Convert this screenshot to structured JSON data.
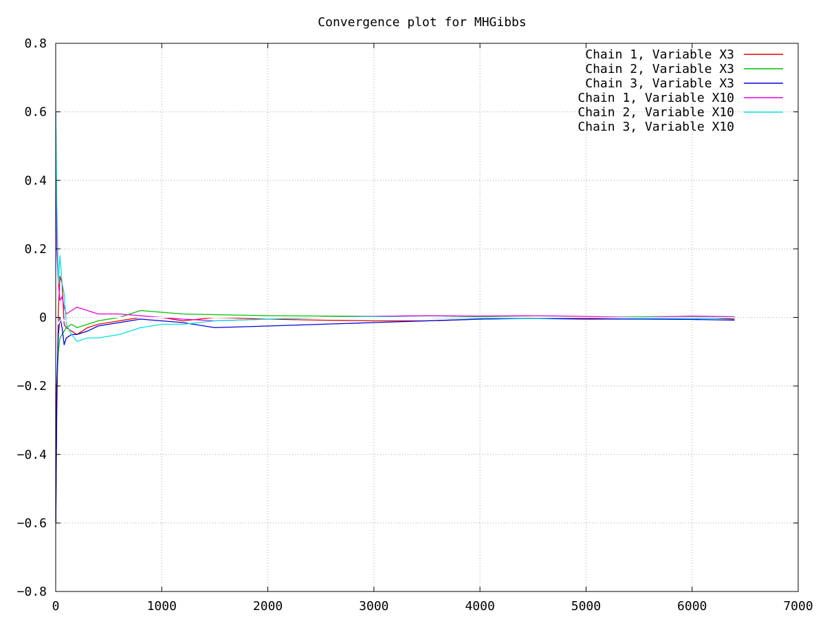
{
  "chart_data": {
    "type": "line",
    "title": "Convergence plot for MHGibbs",
    "xlabel": "",
    "ylabel": "",
    "xlim": [
      0,
      7000
    ],
    "ylim": [
      -0.8,
      0.8
    ],
    "x_ticks": [
      0,
      1000,
      2000,
      3000,
      4000,
      5000,
      6000,
      7000
    ],
    "y_ticks": [
      -0.8,
      -0.6,
      -0.4,
      -0.2,
      0,
      0.2,
      0.4,
      0.6,
      0.8
    ],
    "x_tick_labels": [
      "0",
      "1000",
      "2000",
      "3000",
      "4000",
      "5000",
      "6000",
      "7000"
    ],
    "y_tick_labels": [
      "−0.8",
      "−0.6",
      "−0.4",
      "−0.2",
      "0",
      "0.2",
      "0.4",
      "0.6",
      "0.8"
    ],
    "grid": true,
    "legend_position": "top-right",
    "series": [
      {
        "name": "Chain 1, Variable X3",
        "color": "#e00000",
        "x": [
          1,
          10,
          25,
          40,
          60,
          80,
          100,
          150,
          200,
          300,
          400,
          600,
          800,
          1000,
          1200,
          1500,
          2000,
          2500,
          3000,
          3500,
          4000,
          4500,
          5000,
          5500,
          6000,
          6400
        ],
        "y": [
          -0.6,
          -0.3,
          0.02,
          0.12,
          0.1,
          -0.02,
          -0.03,
          -0.04,
          -0.05,
          -0.03,
          -0.02,
          -0.01,
          0.0,
          0.0,
          -0.01,
          0.0,
          -0.005,
          -0.008,
          -0.01,
          -0.01,
          -0.005,
          -0.002,
          -0.003,
          0.0,
          0.0,
          -0.005
        ]
      },
      {
        "name": "Chain 2, Variable X3",
        "color": "#00c000",
        "x": [
          1,
          10,
          25,
          40,
          60,
          80,
          100,
          150,
          200,
          300,
          400,
          600,
          800,
          1000,
          1200,
          1500,
          2000,
          2500,
          3000,
          3500,
          4000,
          4500,
          5000,
          5500,
          6000,
          6400
        ],
        "y": [
          -0.4,
          -0.2,
          -0.1,
          -0.06,
          -0.05,
          -0.04,
          -0.03,
          -0.02,
          -0.03,
          -0.02,
          -0.01,
          0.0,
          0.02,
          0.015,
          0.01,
          0.008,
          0.005,
          0.004,
          0.003,
          0.005,
          0.002,
          0.0,
          0.0,
          0.002,
          0.003,
          0.002
        ]
      },
      {
        "name": "Chain 3, Variable X3",
        "color": "#0000dd",
        "x": [
          1,
          10,
          25,
          40,
          60,
          80,
          100,
          150,
          200,
          300,
          400,
          600,
          800,
          1000,
          1200,
          1500,
          2000,
          2500,
          3000,
          3500,
          4000,
          4500,
          5000,
          5500,
          6000,
          6400
        ],
        "y": [
          -0.6,
          -0.2,
          -0.05,
          0.0,
          -0.03,
          -0.08,
          -0.06,
          -0.05,
          -0.05,
          -0.04,
          -0.025,
          -0.015,
          -0.005,
          -0.01,
          -0.015,
          -0.03,
          -0.025,
          -0.02,
          -0.015,
          -0.01,
          -0.005,
          -0.003,
          -0.005,
          -0.005,
          -0.006,
          -0.008
        ]
      },
      {
        "name": "Chain 1, Variable X10",
        "color": "#e000e0",
        "x": [
          1,
          10,
          25,
          40,
          60,
          80,
          100,
          150,
          200,
          300,
          400,
          600,
          800,
          1000,
          1200,
          1500,
          2000,
          2500,
          3000,
          3500,
          4000,
          4500,
          5000,
          5500,
          6000,
          6400
        ],
        "y": [
          0.6,
          0.2,
          0.1,
          0.05,
          0.06,
          0.03,
          0.01,
          0.02,
          0.03,
          0.02,
          0.01,
          0.01,
          0.005,
          0.0,
          -0.005,
          -0.01,
          -0.005,
          0.0,
          0.003,
          0.005,
          0.004,
          0.005,
          0.003,
          0.0,
          0.004,
          0.002
        ]
      },
      {
        "name": "Chain 2, Variable X10",
        "color": "#00e0e0",
        "x": [
          1,
          10,
          25,
          40,
          60,
          80,
          100,
          150,
          200,
          300,
          400,
          600,
          800,
          1000,
          1200,
          1500,
          2000,
          2500,
          3000,
          3500,
          4000,
          4500,
          5000,
          5500,
          6000,
          6400
        ],
        "y": [
          0.6,
          0.35,
          0.1,
          0.18,
          0.1,
          0.07,
          -0.02,
          -0.05,
          -0.07,
          -0.06,
          -0.06,
          -0.05,
          -0.03,
          -0.02,
          -0.02,
          -0.01,
          -0.005,
          0.0,
          0.002,
          0.0,
          -0.002,
          -0.003,
          0.0,
          -0.002,
          -0.003,
          -0.002
        ]
      },
      {
        "name": "Chain 3, Variable X10",
        "color": "#ffffff",
        "x": [
          1,
          10,
          25,
          40,
          60,
          80,
          100,
          150,
          200,
          300,
          400,
          600,
          800,
          1000,
          1200,
          1500,
          2000,
          2500,
          3000,
          3500,
          4000,
          4500,
          5000,
          5500,
          6000,
          6400
        ],
        "y": [
          0.0,
          0.0,
          -0.02,
          -0.01,
          0.0,
          -0.01,
          -0.01,
          -0.01,
          -0.01,
          -0.005,
          0.0,
          0.0,
          0.0,
          0.0,
          0.0,
          0.0,
          0.0,
          0.0,
          0.0,
          0.0,
          0.0,
          0.0,
          0.0,
          0.0,
          0.0,
          0.0
        ]
      }
    ]
  }
}
